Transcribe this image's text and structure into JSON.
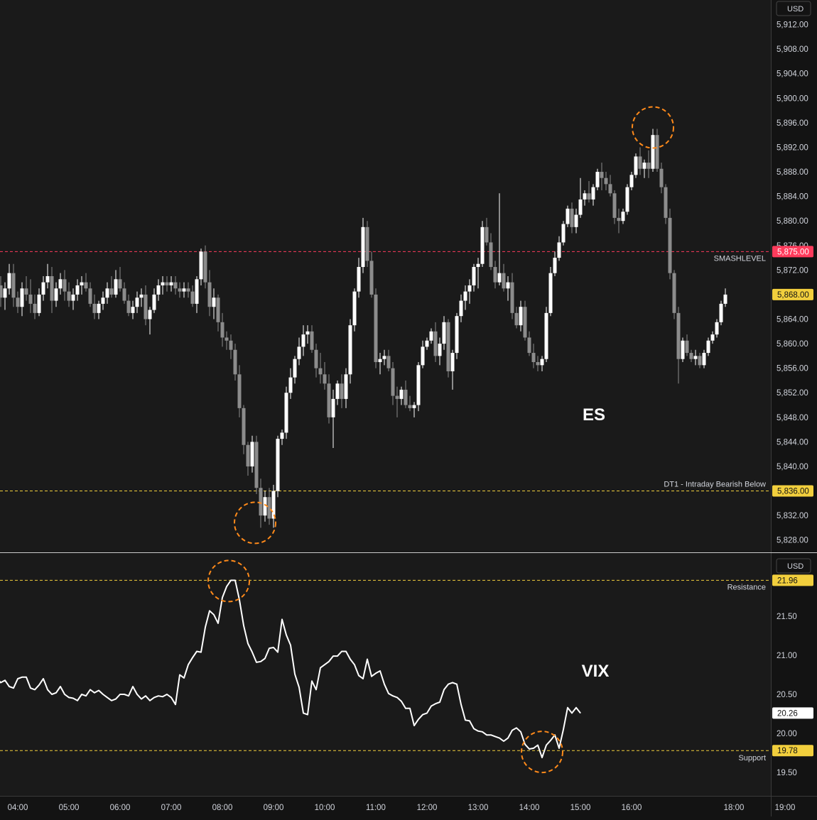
{
  "colors": {
    "background": "#131313",
    "session_shade": "#1a1a1a",
    "axis_text": "#d1d4dc",
    "bull_candle": "#ffffff",
    "bear_candle": "#8c8c8c",
    "smash_line": "#ff3b5c",
    "yellow_line": "#f2cf3d",
    "circle": "#ff8a1a",
    "divider": "#cfcfcf"
  },
  "time_axis": {
    "ticks": [
      "04:00",
      "05:00",
      "06:00",
      "07:00",
      "08:00",
      "09:00",
      "10:00",
      "11:00",
      "12:00",
      "13:00",
      "14:00",
      "15:00",
      "16:00",
      "18:00",
      "19:00"
    ]
  },
  "chart_data": [
    {
      "type": "candlestick",
      "title": "ES",
      "currency": "USD",
      "ylim": [
        5826,
        5916
      ],
      "y_ticks": [
        "5,912.00",
        "5,908.00",
        "5,904.00",
        "5,900.00",
        "5,896.00",
        "5,892.00",
        "5,888.00",
        "5,884.00",
        "5,880.00",
        "5,876.00",
        "5,872.00",
        "5,868.00",
        "5,864.00",
        "5,860.00",
        "5,856.00",
        "5,852.00",
        "5,848.00",
        "5,844.00",
        "5,840.00",
        "5,832.00",
        "5,828.00"
      ],
      "x_start": "03:30",
      "interval_minutes": 5,
      "ohlc": [
        [
          5870.5,
          5872,
          5867,
          5868
        ],
        [
          5868,
          5871,
          5866.5,
          5869.5
        ],
        [
          5869.5,
          5871,
          5866,
          5867.5
        ],
        [
          5867.5,
          5870,
          5865.5,
          5869
        ],
        [
          5869,
          5873,
          5868,
          5871.5
        ],
        [
          5871.5,
          5873,
          5866,
          5867.5
        ],
        [
          5867.5,
          5868.5,
          5865,
          5866
        ],
        [
          5866,
          5870,
          5864.5,
          5869
        ],
        [
          5869,
          5871,
          5867,
          5868
        ],
        [
          5868,
          5870.5,
          5865,
          5866.5
        ],
        [
          5866.5,
          5868,
          5864,
          5865
        ],
        [
          5865,
          5869,
          5864.5,
          5868
        ],
        [
          5868,
          5871,
          5867,
          5870
        ],
        [
          5870,
          5873,
          5869,
          5871
        ],
        [
          5871,
          5872.5,
          5865,
          5867
        ],
        [
          5867,
          5870,
          5866,
          5869
        ],
        [
          5869,
          5871.5,
          5868,
          5870.5
        ],
        [
          5870.5,
          5872,
          5867,
          5868.5
        ],
        [
          5868.5,
          5870,
          5866,
          5867
        ],
        [
          5867,
          5869,
          5865.5,
          5868
        ],
        [
          5868,
          5870.5,
          5867,
          5869.5
        ],
        [
          5869.5,
          5871,
          5868,
          5870
        ],
        [
          5870,
          5871.5,
          5868.5,
          5869
        ],
        [
          5869,
          5870,
          5866,
          5866.5
        ],
        [
          5866.5,
          5868,
          5864,
          5865
        ],
        [
          5865,
          5867,
          5864,
          5866.5
        ],
        [
          5866.5,
          5868.5,
          5865.5,
          5867.5
        ],
        [
          5867.5,
          5870,
          5866.5,
          5869
        ],
        [
          5869,
          5871,
          5867.5,
          5868
        ],
        [
          5868,
          5872,
          5867.5,
          5870.5
        ],
        [
          5870.5,
          5872.5,
          5868.5,
          5869
        ],
        [
          5869,
          5870,
          5866.5,
          5867
        ],
        [
          5867,
          5868,
          5864.5,
          5865
        ],
        [
          5865,
          5867,
          5864,
          5866
        ],
        [
          5866,
          5868.5,
          5865,
          5867.5
        ],
        [
          5867.5,
          5869,
          5866,
          5868
        ],
        [
          5868,
          5869.5,
          5863,
          5864
        ],
        [
          5864,
          5866,
          5861.5,
          5865.5
        ],
        [
          5865.5,
          5869,
          5865,
          5868
        ],
        [
          5868,
          5870.5,
          5867,
          5869.5
        ],
        [
          5869.5,
          5871,
          5868,
          5870
        ],
        [
          5870,
          5871,
          5868.5,
          5869.5
        ],
        [
          5869.5,
          5871,
          5868.5,
          5870
        ],
        [
          5870,
          5871,
          5868,
          5869
        ],
        [
          5869,
          5870,
          5867.5,
          5868.5
        ],
        [
          5868.5,
          5870,
          5867.5,
          5869
        ],
        [
          5869,
          5870,
          5867.5,
          5868.5
        ],
        [
          5868.5,
          5869.5,
          5866,
          5866.5
        ],
        [
          5866.5,
          5871,
          5865,
          5870.5
        ],
        [
          5870.5,
          5875.5,
          5869.5,
          5875
        ],
        [
          5875,
          5876,
          5869,
          5870
        ],
        [
          5870,
          5872,
          5864.5,
          5866
        ],
        [
          5866,
          5869,
          5864,
          5867.5
        ],
        [
          5867.5,
          5868,
          5862,
          5863.5
        ],
        [
          5863.5,
          5865,
          5859.5,
          5861
        ],
        [
          5861,
          5862,
          5859,
          5860.5
        ],
        [
          5860.5,
          5861.5,
          5857.5,
          5859
        ],
        [
          5859,
          5860,
          5854,
          5855
        ],
        [
          5855,
          5856.5,
          5848,
          5849.5
        ],
        [
          5849.5,
          5850,
          5842,
          5843.5
        ],
        [
          5843.5,
          5844,
          5838.5,
          5840
        ],
        [
          5840,
          5845,
          5839,
          5844
        ],
        [
          5844,
          5845,
          5835.5,
          5836.5
        ],
        [
          5836.5,
          5838,
          5830,
          5832
        ],
        [
          5832,
          5836,
          5831,
          5835
        ],
        [
          5835,
          5836.5,
          5830.5,
          5831.5
        ],
        [
          5831.5,
          5837,
          5830,
          5836
        ],
        [
          5836,
          5845,
          5835,
          5844.5
        ],
        [
          5844.5,
          5846,
          5843.5,
          5845.5
        ],
        [
          5845.5,
          5853,
          5844.5,
          5852
        ],
        [
          5852,
          5856,
          5851,
          5854.5
        ],
        [
          5854.5,
          5858,
          5853.5,
          5857.5
        ],
        [
          5857.5,
          5861,
          5856.5,
          5859.5
        ],
        [
          5859.5,
          5863,
          5858,
          5861.5
        ],
        [
          5861.5,
          5863,
          5860,
          5862
        ],
        [
          5862,
          5863,
          5858.5,
          5859
        ],
        [
          5859,
          5860,
          5854.5,
          5856
        ],
        [
          5856,
          5858.5,
          5853.5,
          5855
        ],
        [
          5855,
          5857,
          5852.5,
          5853.5
        ],
        [
          5853.5,
          5855,
          5847,
          5848
        ],
        [
          5848,
          5852.5,
          5843,
          5851
        ],
        [
          5851,
          5854,
          5850,
          5853.5
        ],
        [
          5853.5,
          5855,
          5849.5,
          5851
        ],
        [
          5851,
          5856,
          5849.5,
          5855
        ],
        [
          5855,
          5864,
          5853.5,
          5863
        ],
        [
          5863,
          5869,
          5862,
          5868.5
        ],
        [
          5868.5,
          5874,
          5867.5,
          5872.5
        ],
        [
          5872.5,
          5880.5,
          5871.5,
          5879
        ],
        [
          5879,
          5880,
          5872.5,
          5873.5
        ],
        [
          5873.5,
          5875,
          5867.5,
          5868
        ],
        [
          5868,
          5869,
          5856,
          5857
        ],
        [
          5857,
          5858.5,
          5855,
          5857.5
        ],
        [
          5857.5,
          5859,
          5856.5,
          5858
        ],
        [
          5858,
          5859,
          5855.5,
          5856
        ],
        [
          5856,
          5857,
          5850,
          5851.5
        ],
        [
          5851.5,
          5853,
          5848,
          5851
        ],
        [
          5851,
          5853,
          5850,
          5852.5
        ],
        [
          5852.5,
          5854,
          5849.5,
          5850
        ],
        [
          5850,
          5851.5,
          5849,
          5849.5
        ],
        [
          5849.5,
          5850.5,
          5848,
          5850
        ],
        [
          5850,
          5857,
          5849,
          5856.5
        ],
        [
          5856.5,
          5860.5,
          5856,
          5859.5
        ],
        [
          5859.5,
          5861,
          5859,
          5860.5
        ],
        [
          5860.5,
          5862.5,
          5860,
          5862
        ],
        [
          5862,
          5863.5,
          5857,
          5858
        ],
        [
          5858,
          5861,
          5856.5,
          5860
        ],
        [
          5860,
          5864.5,
          5859,
          5863.5
        ],
        [
          5863.5,
          5864,
          5854.5,
          5855.5
        ],
        [
          5855.5,
          5859,
          5852.5,
          5858.5
        ],
        [
          5858.5,
          5865,
          5857.5,
          5864.5
        ],
        [
          5864.5,
          5868,
          5863.5,
          5867
        ],
        [
          5867,
          5869.5,
          5865.5,
          5868.5
        ],
        [
          5868.5,
          5870.5,
          5866.5,
          5869.5
        ],
        [
          5869.5,
          5873,
          5868.5,
          5872.5
        ],
        [
          5872.5,
          5874,
          5869,
          5873
        ],
        [
          5873,
          5880,
          5872.5,
          5879
        ],
        [
          5879,
          5880.5,
          5876,
          5876.5
        ],
        [
          5876.5,
          5878,
          5872,
          5872.5
        ],
        [
          5872.5,
          5873.5,
          5869,
          5870
        ],
        [
          5870,
          5884.5,
          5869.5,
          5871.5
        ],
        [
          5871.5,
          5873,
          5868.5,
          5869
        ],
        [
          5869,
          5871,
          5867,
          5870
        ],
        [
          5870,
          5871.5,
          5864,
          5865
        ],
        [
          5865,
          5866,
          5862.5,
          5863
        ],
        [
          5863,
          5867,
          5862,
          5866
        ],
        [
          5866,
          5867,
          5860.5,
          5861
        ],
        [
          5861,
          5862,
          5858,
          5858.5
        ],
        [
          5858.5,
          5860,
          5856,
          5857
        ],
        [
          5857,
          5858,
          5855.5,
          5856.5
        ],
        [
          5856.5,
          5858,
          5855.5,
          5857.5
        ],
        [
          5857.5,
          5866,
          5857,
          5865
        ],
        [
          5865,
          5872.5,
          5864.5,
          5871.5
        ],
        [
          5871.5,
          5875,
          5871,
          5874
        ],
        [
          5874,
          5877.5,
          5873.5,
          5876.5
        ],
        [
          5876.5,
          5880,
          5876,
          5879.5
        ],
        [
          5879.5,
          5882.5,
          5879,
          5882
        ],
        [
          5882,
          5883,
          5878,
          5879
        ],
        [
          5879,
          5882,
          5878,
          5881
        ],
        [
          5881,
          5887,
          5880.5,
          5883.5
        ],
        [
          5883.5,
          5885,
          5882.5,
          5884.5
        ],
        [
          5884.5,
          5886.5,
          5883,
          5883.5
        ],
        [
          5883.5,
          5886,
          5882.5,
          5885.5
        ],
        [
          5885.5,
          5888.5,
          5885,
          5888
        ],
        [
          5888,
          5889.5,
          5885,
          5887
        ],
        [
          5887,
          5888,
          5885,
          5886
        ],
        [
          5886,
          5887.5,
          5884,
          5884.5
        ],
        [
          5884.5,
          5885,
          5879.5,
          5880.5
        ],
        [
          5880.5,
          5882,
          5878,
          5880
        ],
        [
          5880,
          5882,
          5879.5,
          5881.5
        ],
        [
          5881.5,
          5886,
          5881,
          5885.5
        ],
        [
          5885.5,
          5888,
          5885,
          5887.5
        ],
        [
          5887.5,
          5891,
          5887,
          5890.5
        ],
        [
          5890.5,
          5892,
          5887.5,
          5888.5
        ],
        [
          5888.5,
          5890,
          5887,
          5889.5
        ],
        [
          5889.5,
          5891.5,
          5887,
          5888.5
        ],
        [
          5888.5,
          5895,
          5888,
          5894
        ],
        [
          5894,
          5895,
          5888,
          5888.5
        ],
        [
          5888.5,
          5889.5,
          5884.5,
          5885.5
        ],
        [
          5885.5,
          5886,
          5879.5,
          5880.5
        ],
        [
          5880.5,
          5882,
          5870.5,
          5871.5
        ],
        [
          5871.5,
          5872,
          5864,
          5865
        ],
        [
          5865,
          5866,
          5853.5,
          5857.5
        ],
        [
          5857.5,
          5861,
          5857,
          5860.5
        ],
        [
          5860.5,
          5861.5,
          5858,
          5858.5
        ],
        [
          5858.5,
          5859,
          5857,
          5857.5
        ],
        [
          5857.5,
          5859,
          5856.5,
          5858
        ],
        [
          5858,
          5858.5,
          5856,
          5856.5
        ],
        [
          5856.5,
          5859,
          5856,
          5858.5
        ],
        [
          5858.5,
          5861,
          5858,
          5860.5
        ],
        [
          5860.5,
          5862,
          5860,
          5861.5
        ],
        [
          5861.5,
          5864,
          5861,
          5863.5
        ],
        [
          5863.5,
          5867,
          5863,
          5866.5
        ],
        [
          5866.5,
          5869,
          5866,
          5868
        ]
      ],
      "price_labels": [
        {
          "name": "SMASHLEVEL",
          "value": 5875.0,
          "text": "5,875.00"
        },
        {
          "name": "DT1 - Intraday Bearish Below",
          "value": 5836.0,
          "text": "5,836.00"
        },
        {
          "name": "",
          "value": 5868.0,
          "text": "5,868.00"
        }
      ]
    },
    {
      "type": "line",
      "title": "VIX",
      "currency": "USD",
      "ylim": [
        19.2,
        22.3
      ],
      "y_ticks": [
        "21.50",
        "21.00",
        "20.50",
        "20.00",
        "19.50"
      ],
      "x_start": "03:30",
      "interval_minutes": 5,
      "values": [
        20.7,
        20.72,
        20.65,
        20.68,
        20.6,
        20.58,
        20.7,
        20.72,
        20.72,
        20.58,
        20.56,
        20.62,
        20.7,
        20.56,
        20.5,
        20.52,
        20.6,
        20.5,
        20.46,
        20.45,
        20.42,
        20.5,
        20.48,
        20.56,
        20.52,
        20.55,
        20.5,
        20.46,
        20.42,
        20.44,
        20.5,
        20.5,
        20.48,
        20.6,
        20.5,
        20.44,
        20.48,
        20.42,
        20.46,
        20.48,
        20.47,
        20.5,
        20.46,
        20.37,
        20.75,
        20.71,
        20.88,
        20.97,
        21.05,
        21.04,
        21.36,
        21.57,
        21.52,
        21.41,
        21.74,
        21.88,
        21.96,
        21.96,
        21.71,
        21.38,
        21.15,
        21.04,
        20.91,
        20.92,
        20.96,
        21.09,
        21.1,
        21.04,
        21.46,
        21.26,
        21.13,
        20.76,
        20.59,
        20.26,
        20.24,
        20.67,
        20.56,
        20.84,
        20.88,
        20.92,
        20.99,
        20.99,
        21.05,
        21.05,
        20.95,
        20.88,
        20.74,
        20.7,
        20.95,
        20.73,
        20.77,
        20.8,
        20.63,
        20.51,
        20.48,
        20.46,
        20.41,
        20.32,
        20.32,
        20.1,
        20.18,
        20.24,
        20.26,
        20.35,
        20.38,
        20.4,
        20.56,
        20.63,
        20.65,
        20.63,
        20.37,
        20.17,
        20.16,
        20.06,
        20.03,
        20.02,
        19.98,
        19.98,
        19.96,
        19.94,
        19.9,
        19.94,
        20.04,
        20.07,
        20.02,
        19.86,
        19.8,
        19.81,
        19.85,
        19.69,
        19.85,
        19.91,
        19.98,
        19.81,
        20.05,
        20.33,
        20.26,
        20.33,
        20.26
      ],
      "price_labels": [
        {
          "name": "Resistance",
          "value": 21.96,
          "text": "21.96"
        },
        {
          "name": "",
          "value": 20.26,
          "text": "20.26"
        },
        {
          "name": "Support",
          "value": 19.78,
          "text": "19.78"
        }
      ]
    }
  ]
}
